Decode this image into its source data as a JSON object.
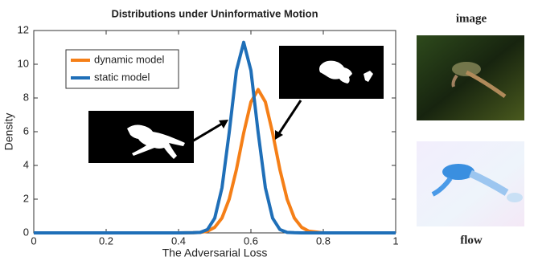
{
  "chart_data": {
    "type": "line",
    "title": "Distributions under Uninformative Motion",
    "xlabel": "The Adversarial Loss",
    "ylabel": "Density",
    "x": [
      0,
      0.4,
      0.44,
      0.46,
      0.48,
      0.5,
      0.52,
      0.54,
      0.56,
      0.58,
      0.6,
      0.62,
      0.64,
      0.66,
      0.68,
      0.7,
      0.72,
      0.74,
      0.76,
      0.8,
      1
    ],
    "series": [
      {
        "name": "dynamic model",
        "color": "#f57f17",
        "values": [
          0,
          0,
          0.01,
          0.03,
          0.1,
          0.33,
          0.88,
          2.0,
          3.76,
          5.92,
          7.76,
          8.5,
          7.76,
          5.92,
          3.76,
          2.0,
          0.88,
          0.33,
          0.1,
          0,
          0
        ]
      },
      {
        "name": "static model",
        "color": "#1f6fb8",
        "values": [
          0,
          0,
          0.01,
          0.03,
          0.2,
          0.87,
          2.67,
          5.95,
          9.63,
          11.3,
          9.63,
          5.95,
          2.67,
          0.87,
          0.2,
          0.03,
          0.01,
          0,
          0,
          0,
          0
        ]
      }
    ],
    "xlim": [
      0,
      1
    ],
    "xticks": [
      0,
      0.2,
      0.4,
      0.6,
      0.8,
      1
    ],
    "ylim": [
      0,
      12
    ],
    "yticks": [
      0,
      2,
      4,
      6,
      8,
      10,
      12
    ],
    "legend": "upper-left",
    "grid": false
  },
  "side_panels": {
    "top_label": "image",
    "bottom_label": "flow"
  }
}
